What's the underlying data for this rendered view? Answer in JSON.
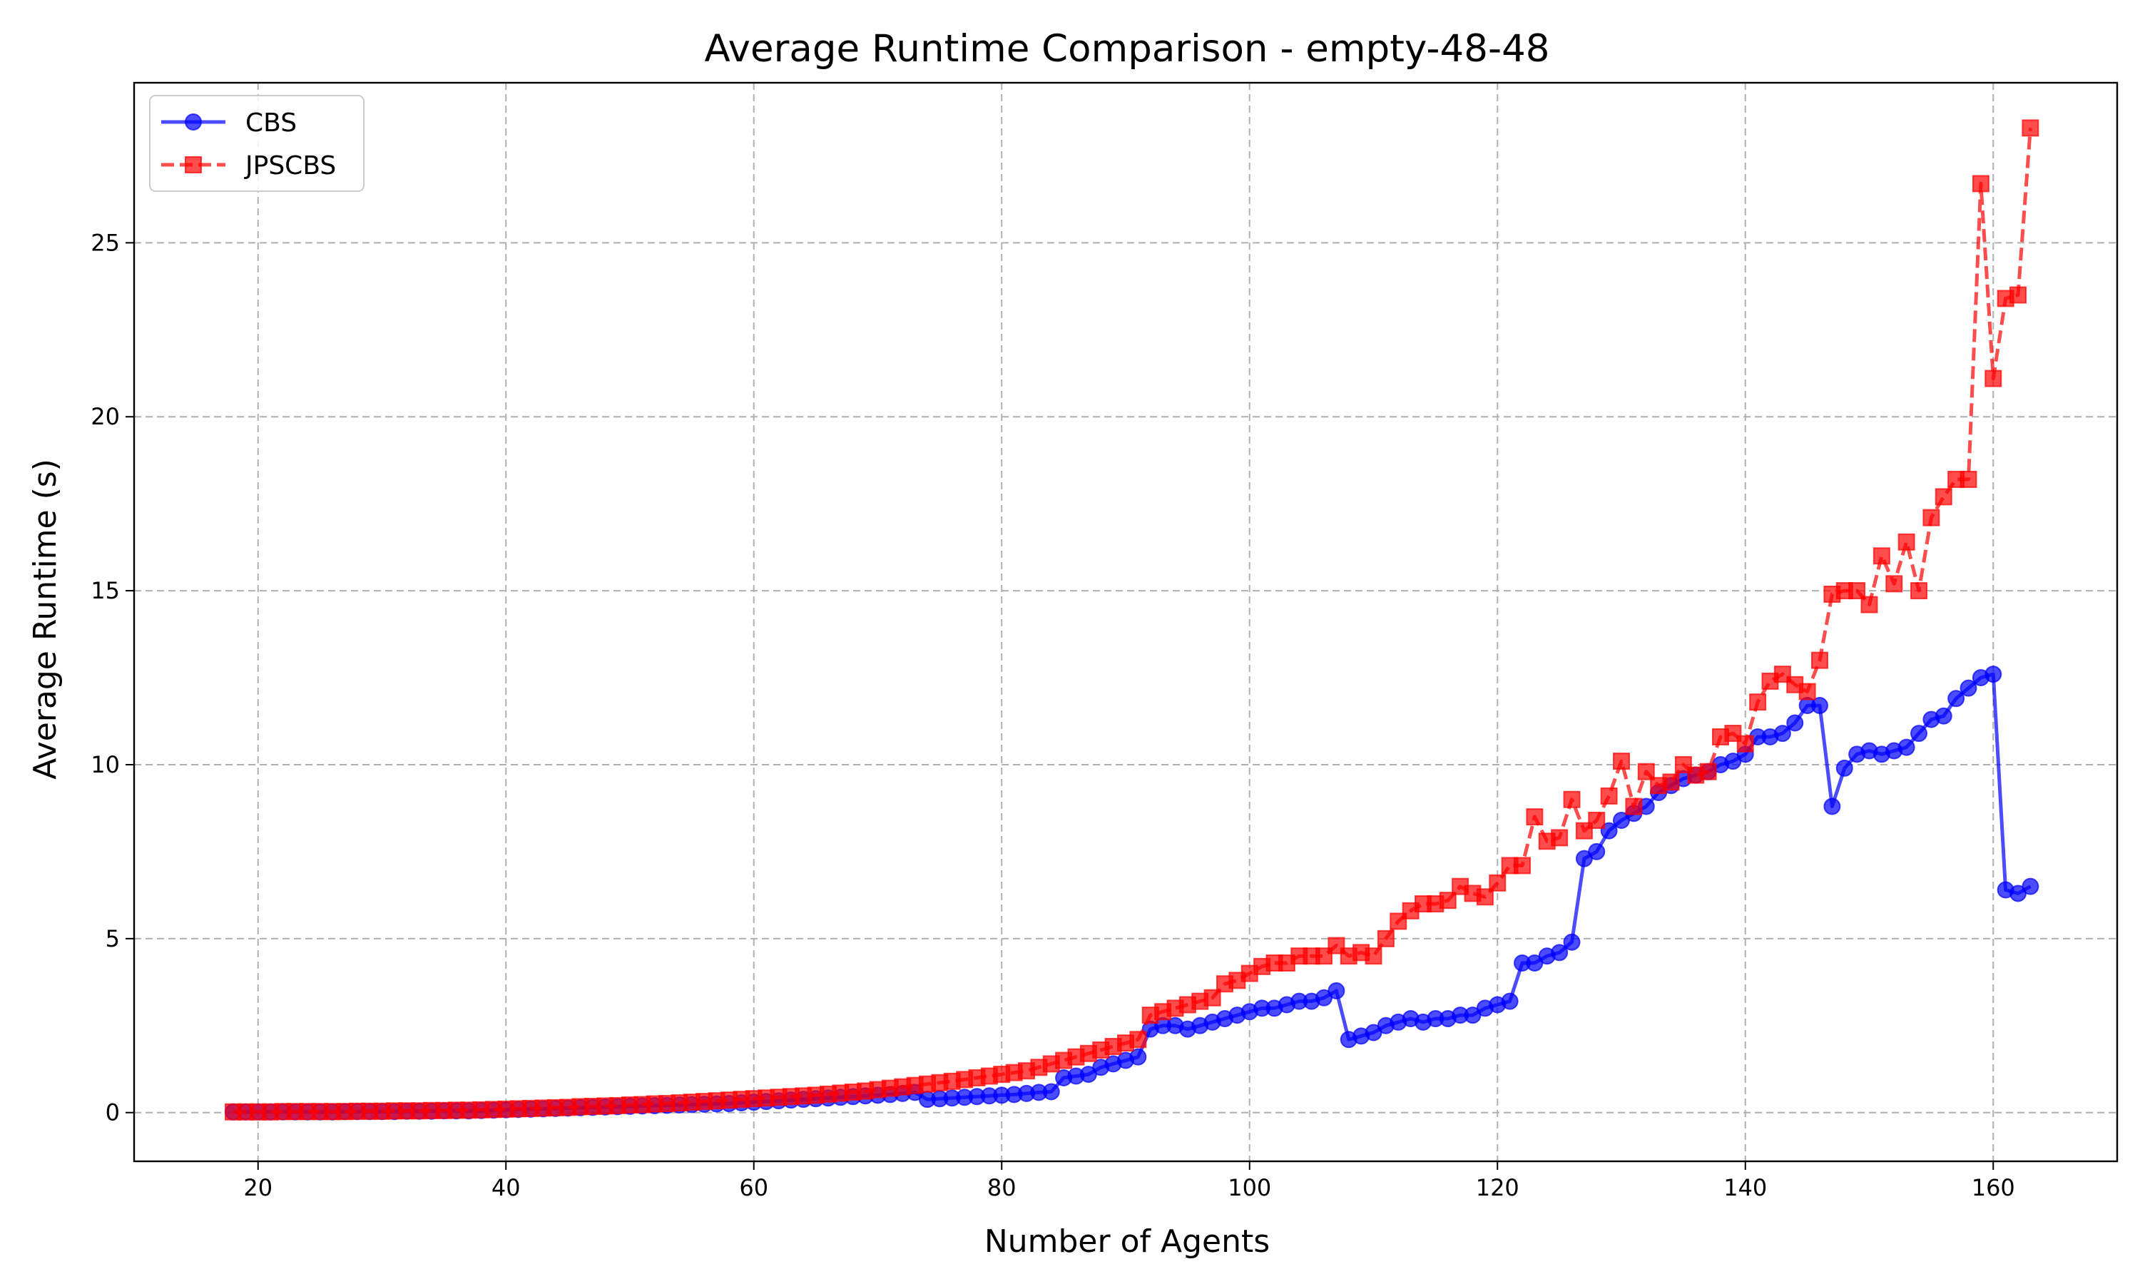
{
  "chart_data": {
    "type": "line",
    "title": "Average Runtime Comparison - empty-48-48",
    "xlabel": "Number of Agents",
    "ylabel": "Average Runtime (s)",
    "xlim": [
      10,
      170
    ],
    "ylim": [
      -1.4,
      29.6
    ],
    "xticks": [
      20,
      40,
      60,
      80,
      100,
      120,
      140,
      160
    ],
    "yticks": [
      0,
      5,
      10,
      15,
      20,
      25
    ],
    "grid": true,
    "legend_position": "upper-left",
    "series": [
      {
        "name": "CBS",
        "color": "#0000ff",
        "marker": "circle",
        "linestyle": "solid",
        "x": [
          18,
          19,
          20,
          21,
          22,
          23,
          24,
          25,
          26,
          27,
          28,
          29,
          30,
          31,
          32,
          33,
          34,
          35,
          36,
          37,
          38,
          39,
          40,
          41,
          42,
          43,
          44,
          45,
          46,
          47,
          48,
          49,
          50,
          51,
          52,
          53,
          54,
          55,
          56,
          57,
          58,
          59,
          60,
          61,
          62,
          63,
          64,
          65,
          66,
          67,
          68,
          69,
          70,
          71,
          72,
          73,
          74,
          75,
          76,
          77,
          78,
          79,
          80,
          81,
          82,
          83,
          84,
          85,
          86,
          87,
          88,
          89,
          90,
          91,
          92,
          93,
          94,
          95,
          96,
          97,
          98,
          99,
          100,
          101,
          102,
          103,
          104,
          105,
          106,
          107,
          108,
          109,
          110,
          111,
          112,
          113,
          114,
          115,
          116,
          117,
          118,
          119,
          120,
          121,
          122,
          123,
          124,
          125,
          126,
          127,
          128,
          129,
          130,
          131,
          132,
          133,
          134,
          135,
          136,
          137,
          138,
          139,
          140,
          141,
          142,
          143,
          144,
          145,
          146,
          147,
          148,
          149,
          150,
          151,
          152,
          153,
          154,
          155,
          156,
          157,
          158,
          159,
          160,
          161,
          162,
          163
        ],
        "y": [
          0.02,
          0.02,
          0.02,
          0.02,
          0.02,
          0.02,
          0.02,
          0.02,
          0.02,
          0.03,
          0.03,
          0.03,
          0.03,
          0.03,
          0.04,
          0.04,
          0.04,
          0.05,
          0.05,
          0.05,
          0.06,
          0.07,
          0.08,
          0.09,
          0.1,
          0.11,
          0.12,
          0.13,
          0.14,
          0.15,
          0.16,
          0.17,
          0.18,
          0.19,
          0.2,
          0.21,
          0.22,
          0.23,
          0.24,
          0.25,
          0.26,
          0.28,
          0.3,
          0.32,
          0.34,
          0.36,
          0.38,
          0.4,
          0.42,
          0.44,
          0.46,
          0.48,
          0.5,
          0.52,
          0.55,
          0.58,
          0.38,
          0.4,
          0.42,
          0.44,
          0.46,
          0.48,
          0.5,
          0.52,
          0.55,
          0.58,
          0.6,
          1.0,
          1.05,
          1.1,
          1.3,
          1.4,
          1.5,
          1.6,
          2.4,
          2.5,
          2.5,
          2.4,
          2.5,
          2.6,
          2.7,
          2.8,
          2.9,
          3.0,
          3.0,
          3.1,
          3.2,
          3.2,
          3.3,
          3.5,
          2.1,
          2.2,
          2.3,
          2.5,
          2.6,
          2.7,
          2.6,
          2.7,
          2.7,
          2.8,
          2.8,
          3.0,
          3.1,
          3.2,
          4.3,
          4.3,
          4.5,
          4.6,
          4.9,
          7.3,
          7.5,
          8.1,
          8.4,
          8.6,
          8.8,
          9.2,
          9.4,
          9.6,
          9.7,
          9.8,
          10.0,
          10.1,
          10.3,
          10.8,
          10.8,
          10.9,
          11.2,
          11.7,
          11.7,
          8.8,
          9.9,
          10.3,
          10.4,
          10.3,
          10.4,
          10.5,
          10.9,
          11.3,
          11.4,
          11.9,
          12.2,
          12.5,
          12.6,
          6.4,
          6.3,
          6.5
        ]
      },
      {
        "name": "JPSCBS",
        "color": "#ff0000",
        "marker": "square",
        "linestyle": "dashed",
        "x": [
          18,
          19,
          20,
          21,
          22,
          23,
          24,
          25,
          26,
          27,
          28,
          29,
          30,
          31,
          32,
          33,
          34,
          35,
          36,
          37,
          38,
          39,
          40,
          41,
          42,
          43,
          44,
          45,
          46,
          47,
          48,
          49,
          50,
          51,
          52,
          53,
          54,
          55,
          56,
          57,
          58,
          59,
          60,
          61,
          62,
          63,
          64,
          65,
          66,
          67,
          68,
          69,
          70,
          71,
          72,
          73,
          74,
          75,
          76,
          77,
          78,
          79,
          80,
          81,
          82,
          83,
          84,
          85,
          86,
          87,
          88,
          89,
          90,
          91,
          92,
          93,
          94,
          95,
          96,
          97,
          98,
          99,
          100,
          101,
          102,
          103,
          104,
          105,
          106,
          107,
          108,
          109,
          110,
          111,
          112,
          113,
          114,
          115,
          116,
          117,
          118,
          119,
          120,
          121,
          122,
          123,
          124,
          125,
          126,
          127,
          128,
          129,
          130,
          131,
          132,
          133,
          134,
          135,
          136,
          137,
          138,
          139,
          140,
          141,
          142,
          143,
          144,
          145,
          146,
          147,
          148,
          149,
          150,
          151,
          152,
          153,
          154,
          155,
          156,
          157,
          158,
          159,
          160,
          161,
          162,
          163
        ],
        "y": [
          0.02,
          0.02,
          0.02,
          0.02,
          0.03,
          0.03,
          0.03,
          0.03,
          0.03,
          0.03,
          0.04,
          0.04,
          0.04,
          0.05,
          0.05,
          0.05,
          0.06,
          0.06,
          0.07,
          0.07,
          0.08,
          0.09,
          0.1,
          0.11,
          0.12,
          0.13,
          0.14,
          0.15,
          0.17,
          0.18,
          0.19,
          0.2,
          0.22,
          0.23,
          0.25,
          0.26,
          0.28,
          0.3,
          0.32,
          0.34,
          0.36,
          0.38,
          0.4,
          0.42,
          0.44,
          0.46,
          0.48,
          0.5,
          0.53,
          0.56,
          0.59,
          0.62,
          0.66,
          0.7,
          0.74,
          0.78,
          0.82,
          0.86,
          0.9,
          0.95,
          1.0,
          1.05,
          1.1,
          1.15,
          1.2,
          1.3,
          1.4,
          1.5,
          1.6,
          1.7,
          1.8,
          1.9,
          2.0,
          2.1,
          2.8,
          2.9,
          3.0,
          3.1,
          3.2,
          3.3,
          3.7,
          3.8,
          4.0,
          4.2,
          4.3,
          4.3,
          4.5,
          4.5,
          4.5,
          4.8,
          4.5,
          4.6,
          4.5,
          5.0,
          5.5,
          5.8,
          6.0,
          6.0,
          6.1,
          6.5,
          6.3,
          6.2,
          6.6,
          7.1,
          7.1,
          8.5,
          7.8,
          7.9,
          9.0,
          8.1,
          8.4,
          9.1,
          10.1,
          8.8,
          9.8,
          9.4,
          9.5,
          10.0,
          9.7,
          9.8,
          10.8,
          10.9,
          10.6,
          11.8,
          12.4,
          12.6,
          12.3,
          12.1,
          13.0,
          14.9,
          15.0,
          15.0,
          14.6,
          16.0,
          15.2,
          16.4,
          15.0,
          17.1,
          17.7,
          18.2,
          18.2,
          26.7,
          21.1,
          23.4,
          23.5,
          28.3
        ]
      }
    ]
  }
}
